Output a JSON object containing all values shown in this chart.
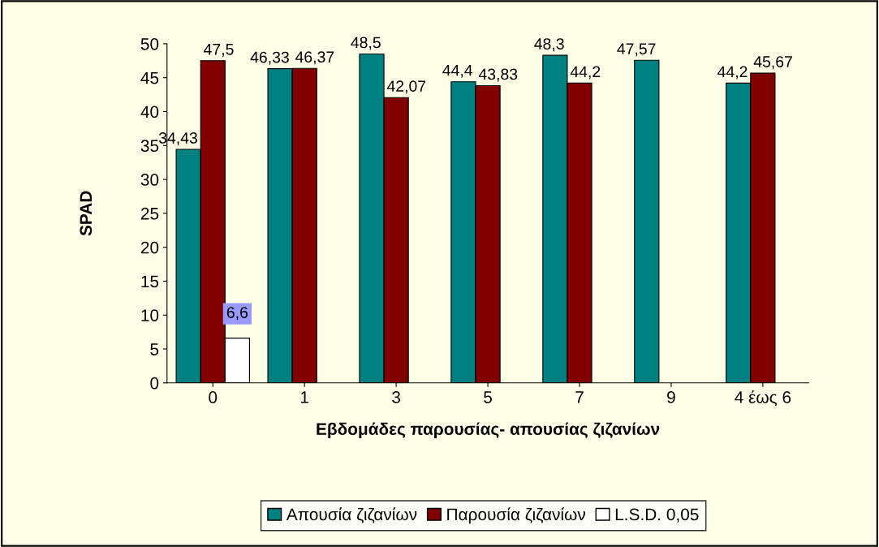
{
  "chart_data": {
    "type": "bar",
    "xlabel": "Εβδομάδες παρουσίας- απουσίας ζιζανίων",
    "ylabel": "SPAD",
    "categories": [
      "0",
      "1",
      "3",
      "5",
      "7",
      "9",
      "4 έως 6"
    ],
    "series": [
      {
        "name": "Απουσία ζιζανίων",
        "color": "#008080",
        "values": [
          34.43,
          46.33,
          48.5,
          44.4,
          48.3,
          47.57,
          44.2
        ],
        "value_labels": [
          "34,43",
          "46,33",
          "48,5",
          "44,4",
          "48,3",
          "47,57",
          "44,2"
        ]
      },
      {
        "name": "Παρουσία ζιζανίων",
        "color": "#800000",
        "values": [
          47.5,
          46.37,
          42.07,
          43.83,
          44.2,
          null,
          45.67
        ],
        "value_labels": [
          "47,5",
          "46,37",
          "42,07",
          "43,83",
          "44,2",
          null,
          "45,67"
        ]
      },
      {
        "name": "L.S.D. 0,05",
        "color": "#ffffff",
        "values": [
          6.6,
          null,
          null,
          null,
          null,
          null,
          null
        ],
        "value_labels": [
          "6,6",
          null,
          null,
          null,
          null,
          null,
          null
        ]
      }
    ],
    "ylim": [
      0,
      50
    ],
    "yticks": [
      0,
      5,
      10,
      15,
      20,
      25,
      30,
      35,
      40,
      45,
      50
    ],
    "grid": false,
    "legend": "bottom"
  }
}
